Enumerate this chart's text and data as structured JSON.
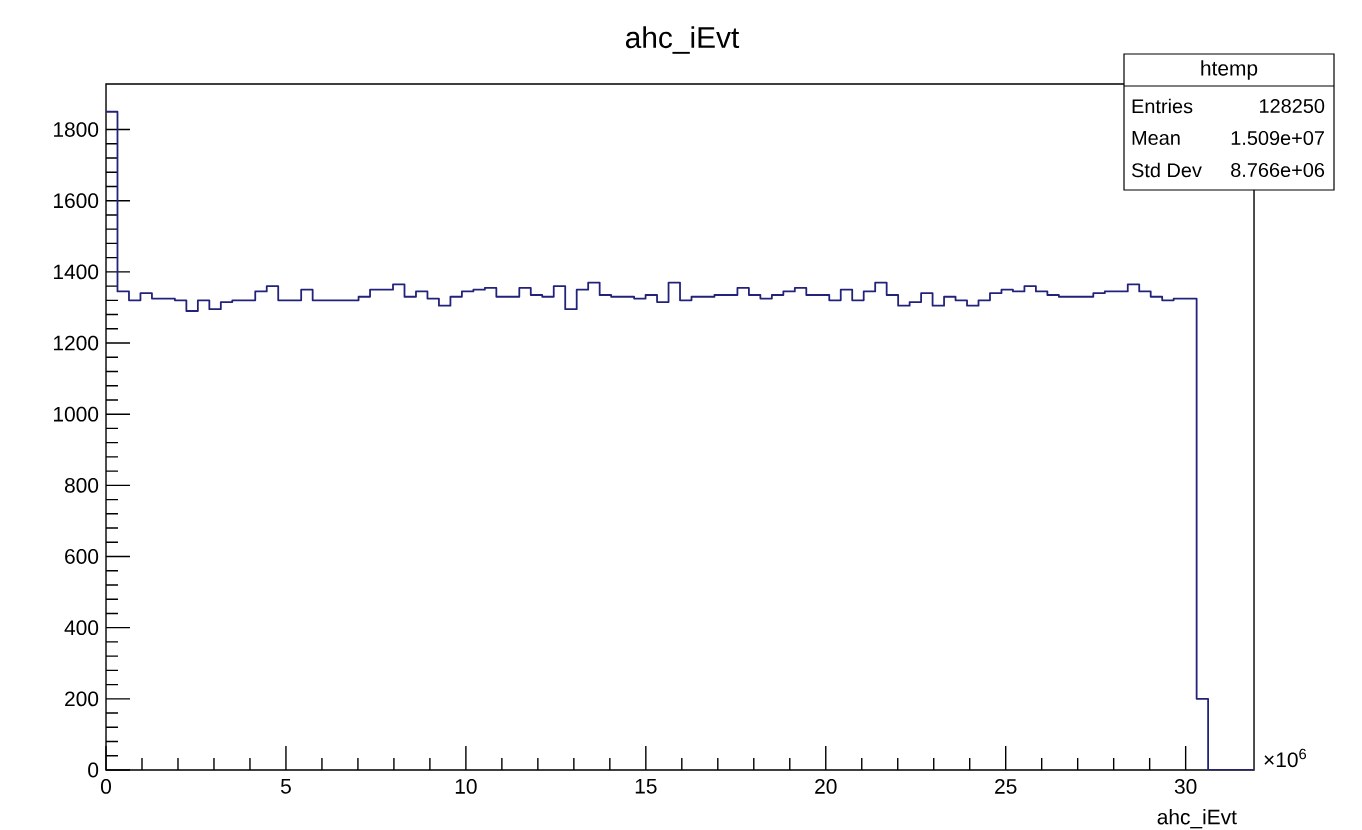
{
  "chart_data": {
    "type": "histogram",
    "title": "ahc_iEvt",
    "xlabel": "ahc_iEvt",
    "color": "#22227a",
    "bins": [
      0,
      0.319,
      0.638,
      0.957,
      1.276,
      1.595,
      1.914,
      2.233,
      2.552,
      2.871,
      3.19,
      3.509,
      3.828,
      4.147,
      4.466,
      4.785,
      5.104,
      5.423,
      5.742,
      6.061,
      6.38,
      6.699,
      7.018,
      7.337,
      7.656,
      7.975,
      8.294,
      8.613,
      8.932,
      9.251,
      9.57,
      9.889,
      10.208,
      10.527,
      10.846,
      11.165,
      11.484,
      11.803,
      12.122,
      12.441,
      12.76,
      13.079,
      13.398,
      13.717,
      14.036,
      14.355,
      14.674,
      14.993,
      15.312,
      15.631,
      15.95,
      16.269,
      16.588,
      16.907,
      17.226,
      17.545,
      17.864,
      18.183,
      18.502,
      18.821,
      19.14,
      19.459,
      19.778,
      20.097,
      20.416,
      20.735,
      21.054,
      21.373,
      21.692,
      22.011,
      22.33,
      22.649,
      22.968,
      23.287,
      23.606,
      23.925,
      24.244,
      24.563,
      24.882,
      25.201,
      25.52,
      25.839,
      26.158,
      26.477,
      26.796,
      27.115,
      27.434,
      27.753,
      28.072,
      28.391,
      28.71,
      29.029,
      29.348,
      29.667,
      29.986,
      30.305,
      30.624,
      30.943,
      31.262,
      31.581,
      31.9
    ],
    "values": [
      1850,
      1345,
      1320,
      1340,
      1325,
      1325,
      1320,
      1290,
      1320,
      1295,
      1315,
      1320,
      1320,
      1345,
      1360,
      1320,
      1320,
      1350,
      1320,
      1320,
      1320,
      1320,
      1330,
      1350,
      1350,
      1365,
      1330,
      1345,
      1325,
      1305,
      1330,
      1345,
      1350,
      1355,
      1330,
      1330,
      1355,
      1335,
      1330,
      1360,
      1295,
      1350,
      1370,
      1335,
      1330,
      1330,
      1325,
      1335,
      1315,
      1370,
      1320,
      1330,
      1330,
      1335,
      1335,
      1355,
      1335,
      1325,
      1335,
      1345,
      1355,
      1335,
      1335,
      1320,
      1350,
      1320,
      1345,
      1370,
      1335,
      1305,
      1315,
      1340,
      1305,
      1330,
      1320,
      1305,
      1320,
      1340,
      1350,
      1345,
      1360,
      1345,
      1335,
      1330,
      1330,
      1330,
      1340,
      1345,
      1345,
      1365,
      1345,
      1330,
      1320,
      1325,
      1325,
      200,
      0,
      0,
      0,
      0
    ],
    "xlim": [
      0,
      31.9
    ],
    "ylim": [
      0,
      1928
    ],
    "xticks": [
      0,
      5,
      10,
      15,
      20,
      25,
      30
    ],
    "yticks": [
      0,
      200,
      400,
      600,
      800,
      1000,
      1200,
      1400,
      1600,
      1800
    ],
    "annotations": [
      "htemp",
      "Entries",
      "128250",
      "Mean",
      "1.509e+07",
      "Std Dev",
      "8.766e+06",
      "×10$^{6}$"
    ]
  }
}
